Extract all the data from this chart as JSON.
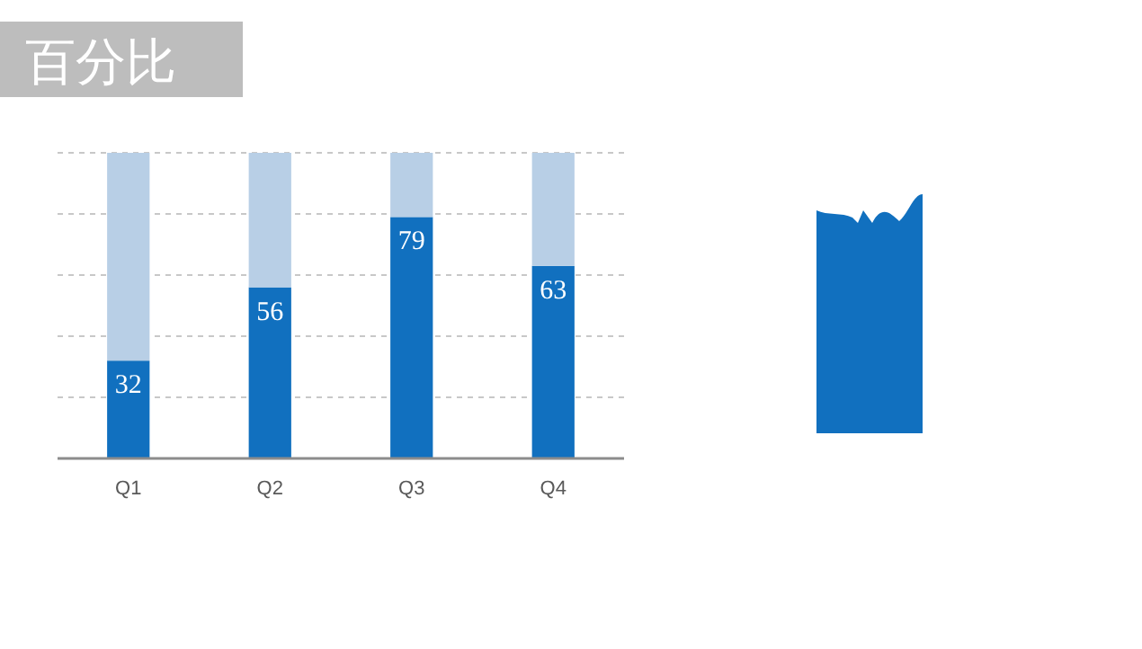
{
  "chart_data": {
    "type": "bar",
    "title": "百分比",
    "categories": [
      "Q1",
      "Q2",
      "Q3",
      "Q4"
    ],
    "stacked": true,
    "series": [
      {
        "color": "#1170bf",
        "values": [
          32,
          56,
          79,
          63
        ],
        "value_labels": [
          "32",
          "56",
          "79",
          "63"
        ]
      },
      {
        "color": "#b8cfe6",
        "values": [
          68,
          44,
          21,
          37
        ]
      }
    ],
    "ylim": [
      0,
      100
    ],
    "yticks": [
      {
        "value": 0,
        "label": null
      },
      {
        "value": 20,
        "label": null
      },
      {
        "value": 40,
        "label": null
      },
      {
        "value": 60,
        "label": null
      },
      {
        "value": 80,
        "label": null
      },
      {
        "value": 100,
        "label": null
      }
    ],
    "tick_labels": "x",
    "grid": "y"
  }
}
